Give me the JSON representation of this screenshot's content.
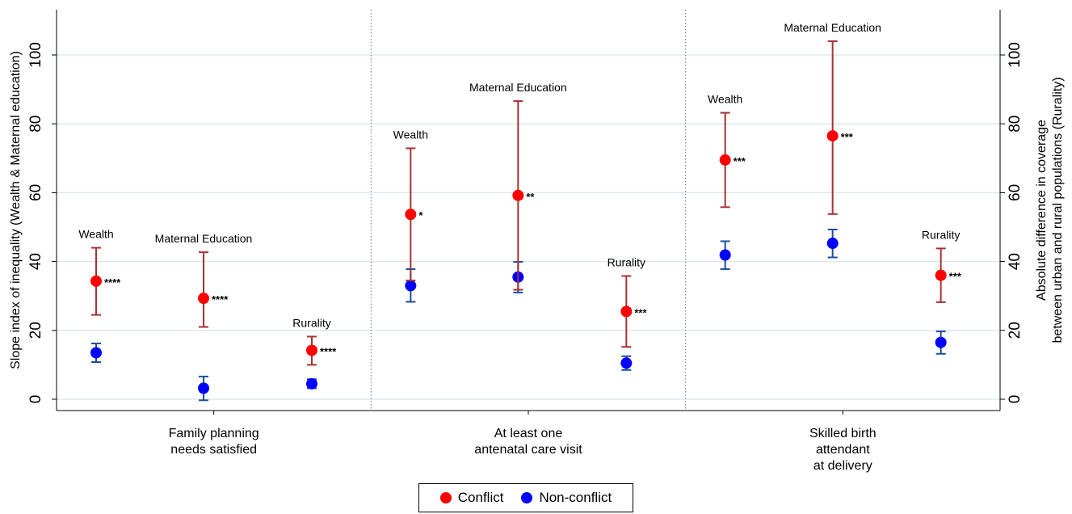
{
  "chart_data": {
    "type": "scatter",
    "ylabel_left": "Slope index of inequality (Wealth & Maternal education)",
    "ylabel_right_lines": [
      "Absolute difference in coverage",
      "between urban and rural populations (Rurality)"
    ],
    "ylim": [
      -5,
      113
    ],
    "yticks": [
      0,
      20,
      40,
      60,
      80,
      100
    ],
    "grid": true,
    "legend_position": "bottom-center",
    "colors": {
      "conflict": "#ff0000",
      "non_conflict": "#0000ff",
      "errorbar_conflict": "#a83232",
      "errorbar_non_conflict": "#1f4e9a"
    },
    "series": [
      {
        "name": "Conflict"
      },
      {
        "name": "Non-conflict"
      }
    ],
    "panels": [
      {
        "label_lines": [
          "Family planning",
          "needs satisfied"
        ],
        "points": [
          {
            "label": "Wealth",
            "conflict": {
              "value": 34.3,
              "low": 24.5,
              "high": 44.0,
              "sig": "****"
            },
            "non_conflict": {
              "value": 13.5,
              "low": 10.8,
              "high": 16.2
            }
          },
          {
            "label": "Maternal Education",
            "conflict": {
              "value": 29.3,
              "low": 21.0,
              "high": 42.7,
              "sig": "****"
            },
            "non_conflict": {
              "value": 3.2,
              "low": -0.3,
              "high": 6.6
            }
          },
          {
            "label": "Rurality",
            "conflict": {
              "value": 14.2,
              "low": 10.0,
              "high": 18.2,
              "sig": "****"
            },
            "non_conflict": {
              "value": 4.5,
              "low": 3.2,
              "high": 5.8
            }
          }
        ]
      },
      {
        "label_lines": [
          "At least one",
          "antenatal care visit"
        ],
        "points": [
          {
            "label": "Wealth",
            "conflict": {
              "value": 53.7,
              "low": 34.5,
              "high": 72.9,
              "sig": "*"
            },
            "non_conflict": {
              "value": 33.0,
              "low": 28.3,
              "high": 37.8
            }
          },
          {
            "label": "Maternal Education",
            "conflict": {
              "value": 59.2,
              "low": 31.8,
              "high": 86.6,
              "sig": "**"
            },
            "non_conflict": {
              "value": 35.5,
              "low": 31.0,
              "high": 39.9
            }
          },
          {
            "label": "Rurality",
            "conflict": {
              "value": 25.5,
              "low": 15.2,
              "high": 35.8,
              "sig": "***"
            },
            "non_conflict": {
              "value": 10.5,
              "low": 8.5,
              "high": 12.5
            }
          }
        ]
      },
      {
        "label_lines": [
          "Skilled birth",
          "attendant",
          "at delivery"
        ],
        "points": [
          {
            "label": "Wealth",
            "conflict": {
              "value": 69.5,
              "low": 55.8,
              "high": 83.2,
              "sig": "***"
            },
            "non_conflict": {
              "value": 41.9,
              "low": 37.8,
              "high": 45.9
            }
          },
          {
            "label": "Maternal Education",
            "conflict": {
              "value": 76.5,
              "low": 53.8,
              "high": 104.0,
              "sig": "***"
            },
            "non_conflict": {
              "value": 45.3,
              "low": 41.2,
              "high": 49.3
            }
          },
          {
            "label": "Rurality",
            "conflict": {
              "value": 36.0,
              "low": 28.2,
              "high": 43.8,
              "sig": "***"
            },
            "non_conflict": {
              "value": 16.5,
              "low": 13.2,
              "high": 19.7
            }
          }
        ]
      }
    ]
  }
}
